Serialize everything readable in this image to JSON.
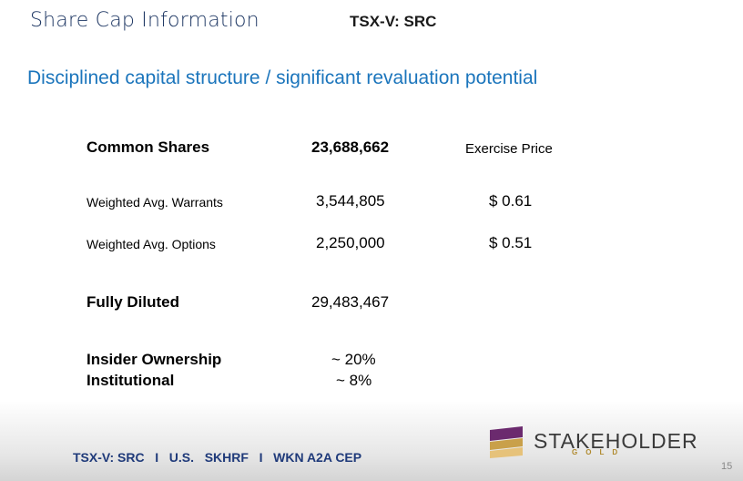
{
  "header": {
    "title": "Share Cap Information",
    "ticker": "TSX-V: SRC",
    "subtitle": "Disciplined capital structure / significant revaluation potential"
  },
  "table": {
    "rows": [
      [
        "Common Shares",
        "23,688,662",
        "Exercise Price"
      ],
      [
        "Weighted Avg. Warrants",
        "3,544,805",
        "$ 0.61"
      ],
      [
        "Weighted Avg. Options",
        "2,250,000",
        "$ 0.51"
      ],
      [
        "Fully Diluted",
        "29,483,467"
      ],
      [
        "Insider Ownership",
        "~ 20%"
      ],
      [
        "Institutional",
        "~ 8%"
      ]
    ]
  },
  "footer": {
    "text": "TSX-V: SRC   I   U.S.   SKHRF   I   WKN A2A CEP",
    "logo_name": "STAKEHOLDER",
    "logo_sub": "GOLD",
    "page_number": "15"
  }
}
